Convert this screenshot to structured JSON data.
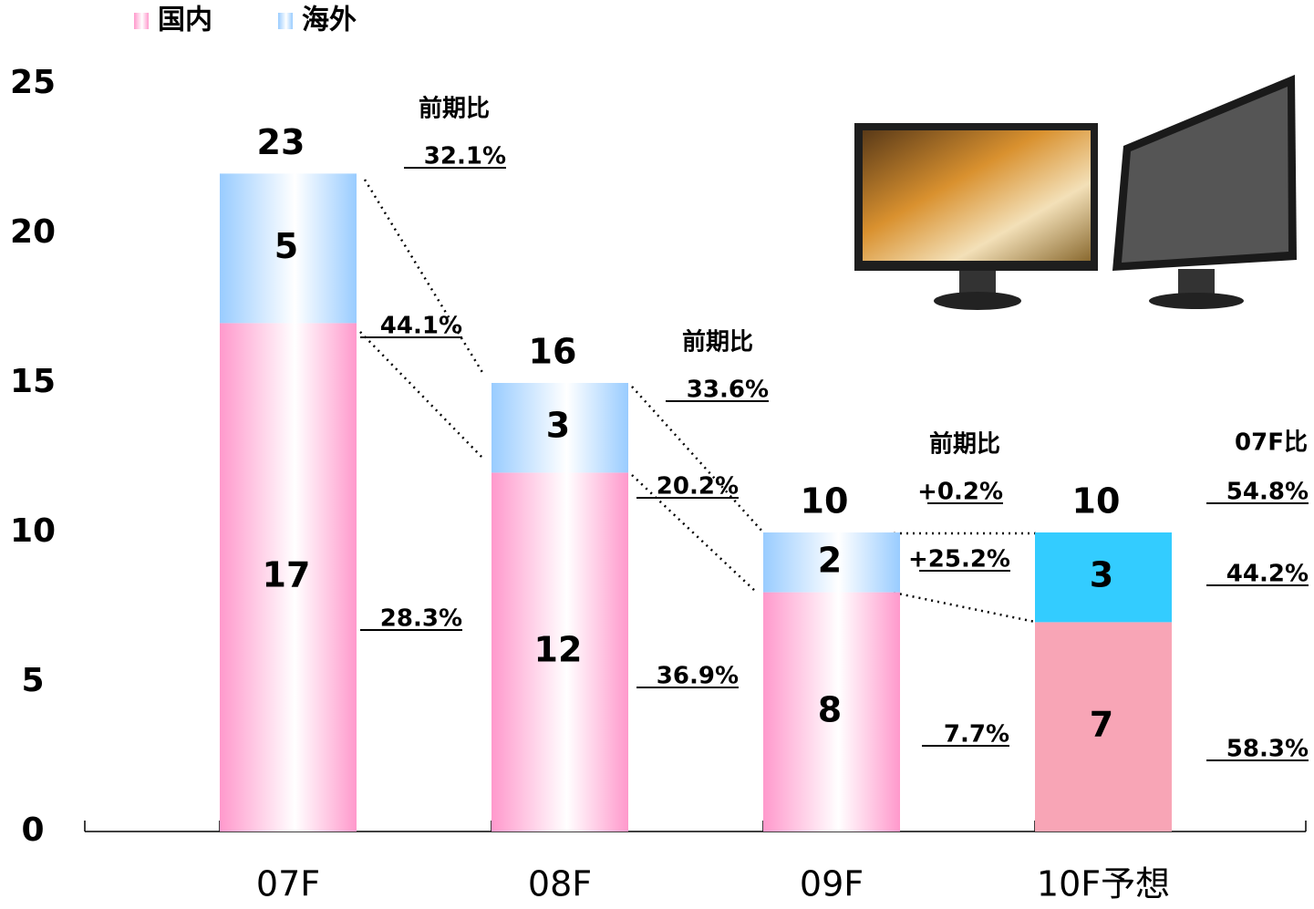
{
  "chart_data": {
    "type": "stacked_bar",
    "categories": [
      "07F",
      "08F",
      "09F",
      "10F予想"
    ],
    "series": [
      {
        "name": "国内",
        "color": "#ff99cc",
        "colors": [
          "#ff99cc",
          "#ff99cc",
          "#ff99cc",
          "#f8a5b6"
        ],
        "values": [
          17,
          12,
          8,
          7
        ]
      },
      {
        "name": "海外",
        "color": "#99ccff",
        "colors": [
          "#99ccff",
          "#99ccff",
          "#99ccff",
          "#33ccff"
        ],
        "values": [
          5,
          3,
          2,
          3
        ]
      }
    ],
    "totals": [
      23,
      16,
      10,
      10
    ],
    "ylim": [
      0,
      25
    ],
    "yticks": [
      0,
      5,
      10,
      15,
      20,
      25
    ],
    "annotations": [
      "前期比",
      "32.1%",
      "44.1%",
      "28.3%",
      "前期比",
      "33.6%",
      "20.2%",
      "36.9%",
      "前期比",
      "+0.2%",
      "+25.2%",
      "7.7%",
      "07F比",
      "54.8%",
      "44.2%",
      "58.3%"
    ]
  }
}
